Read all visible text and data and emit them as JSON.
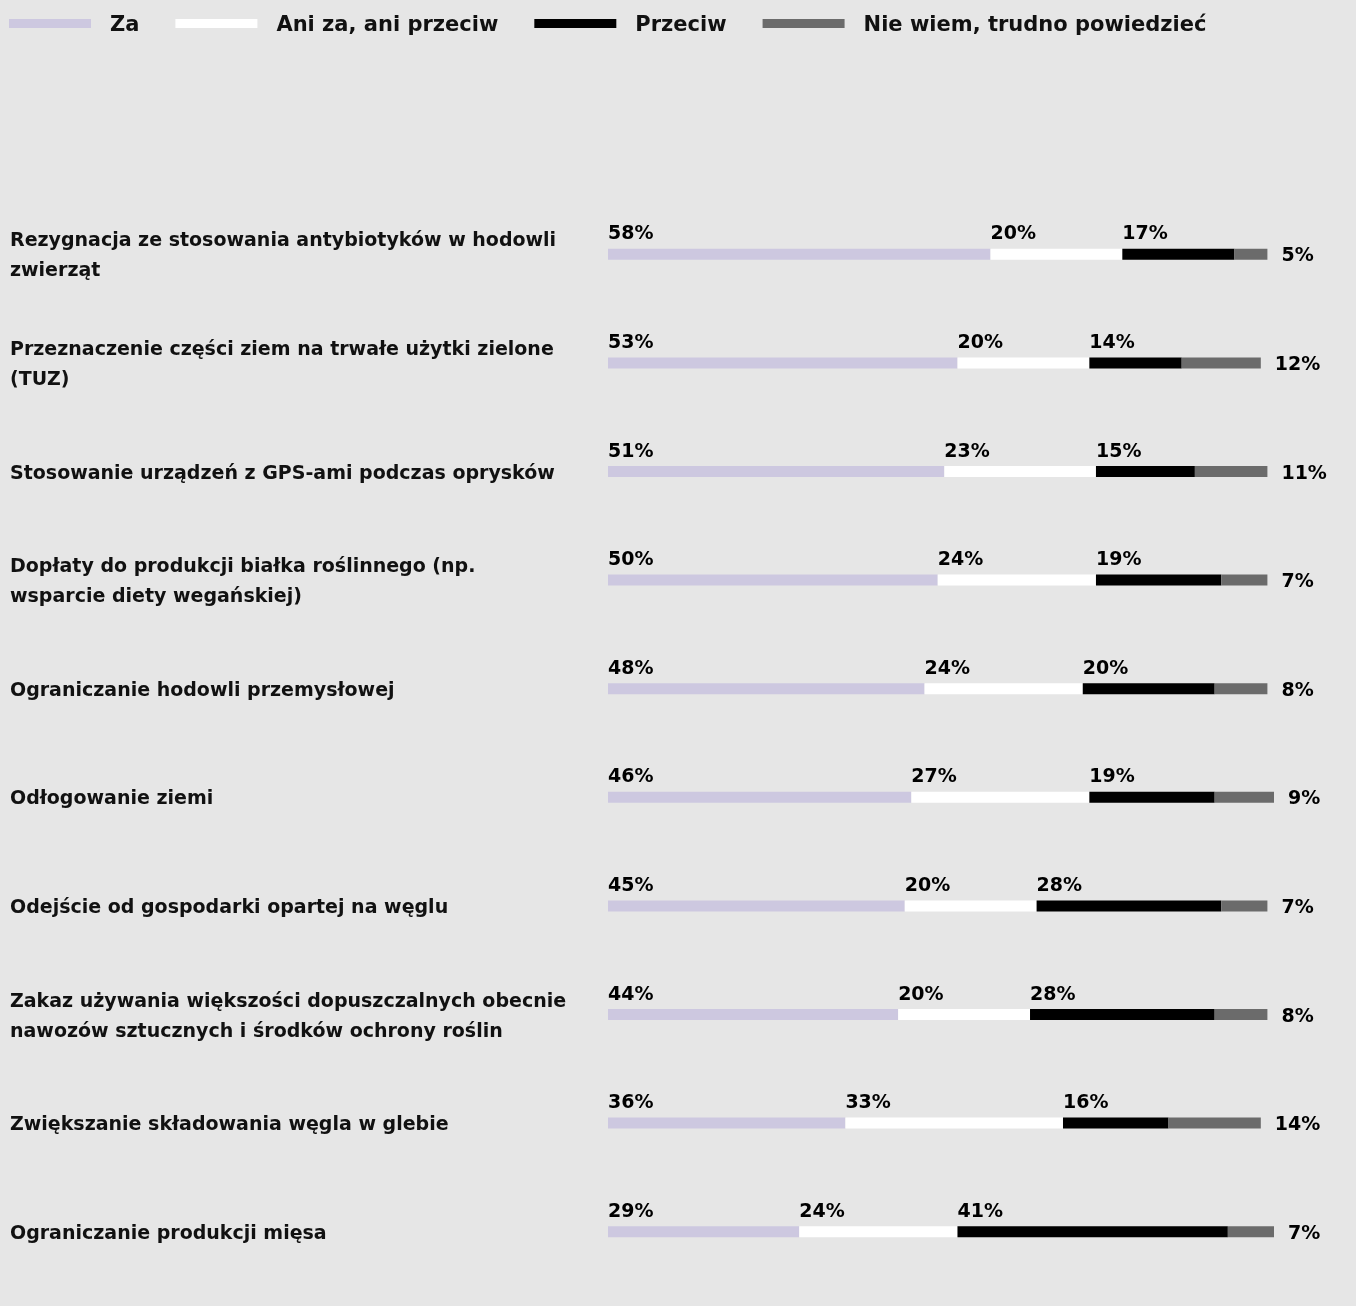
{
  "chart_data": {
    "type": "bar",
    "orientation": "horizontal",
    "stacked": true,
    "legend": "top left",
    "tick_labels": "y",
    "categories": [
      "Rezygnacja ze stosowania antybiotyków w hodowli zwierząt",
      "Przeznaczenie części ziem na trwałe użytki zielone (TUZ)",
      "Stosowanie urządzeń z GPS-ami podczas oprysków",
      "Dopłaty do produkcji białka roślinnego (np. wsparcie diety wegańskiej)",
      "Ograniczanie hodowli przemysłowej",
      "Odłogowanie ziemi",
      "Odejście od gospodarki opartej na węglu",
      "Zakaz używania większości dopuszczalnych obecnie nawozów sztucznych i środków ochrony roślin",
      "Zwiększanie składowania węgla w glebie",
      "Ograniczanie produkcji mięsa"
    ],
    "series": [
      {
        "name": "Za",
        "color": "#cdc8e0",
        "values": [
          58,
          53,
          51,
          50,
          48,
          46,
          45,
          44,
          36,
          29
        ],
        "value_labels": [
          "58%",
          "53%",
          "51%",
          "50%",
          "48%",
          "46%",
          "45%",
          "44%",
          "36%",
          "29%"
        ]
      },
      {
        "name": "Ani za, ani przeciw",
        "color": "#ffffff",
        "values": [
          20,
          20,
          23,
          24,
          24,
          27,
          20,
          20,
          33,
          24
        ],
        "value_labels": [
          "20%",
          "20%",
          "23%",
          "24%",
          "24%",
          "27%",
          "20%",
          "20%",
          "33%",
          "24%"
        ]
      },
      {
        "name": "Przeciw",
        "color": "#000000",
        "values": [
          17,
          14,
          15,
          19,
          20,
          19,
          28,
          28,
          16,
          41
        ],
        "value_labels": [
          "17%",
          "14%",
          "15%",
          "19%",
          "20%",
          "19%",
          "28%",
          "28%",
          "16%",
          "41%"
        ]
      },
      {
        "name": "Nie wiem, trudno powiedzieć",
        "color": "#6b6b6b",
        "values": [
          5,
          12,
          11,
          7,
          8,
          9,
          7,
          8,
          14,
          7
        ],
        "value_labels": [
          "5%",
          "12%",
          "11%",
          "7%",
          "8%",
          "9%",
          "7%",
          "8%",
          "14%",
          "7%"
        ]
      }
    ]
  }
}
